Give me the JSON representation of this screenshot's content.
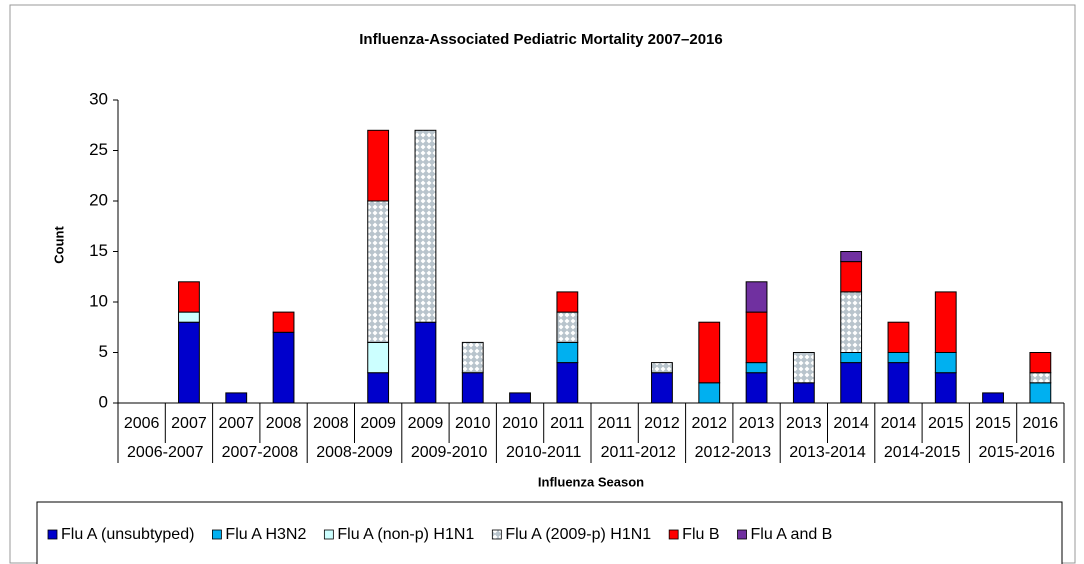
{
  "chart_data": {
    "type": "stacked-bar",
    "title": "Influenza-Associated Pediatric Mortality 2007–2016",
    "x_label": "Influenza Season",
    "y_label": "Count",
    "categories": [
      "2006",
      "2007",
      "2007",
      "2008",
      "2008",
      "2009",
      "2009",
      "2010",
      "2010",
      "2011",
      "2011",
      "2012",
      "2012",
      "2013",
      "2013",
      "2014",
      "2014",
      "2015",
      "2015",
      "2016"
    ],
    "groups": [
      "2006-2007",
      "2007-2008",
      "2008-2009",
      "2009-2010",
      "2010-2011",
      "2011-2012",
      "2012-2013",
      "2013-2014",
      "2014-2015",
      "2015-2016"
    ],
    "series": [
      {
        "name": "Flu A (unsubtyped)",
        "color": "#0000cc",
        "values": [
          0,
          8,
          1,
          7,
          0,
          3,
          8,
          3,
          1,
          4,
          0,
          3,
          0,
          3,
          2,
          4,
          4,
          3,
          1,
          0
        ]
      },
      {
        "name": "Flu A H3N2",
        "color": "#00b0f0",
        "values": [
          0,
          0,
          0,
          0,
          0,
          0,
          0,
          0,
          0,
          2,
          0,
          0,
          2,
          1,
          0,
          1,
          1,
          2,
          0,
          2
        ]
      },
      {
        "name": "Flu A (non-p) H1N1",
        "color": "#ccffff",
        "values": [
          0,
          1,
          0,
          0,
          0,
          3,
          0,
          0,
          0,
          0,
          0,
          0,
          0,
          0,
          0,
          0,
          0,
          0,
          0,
          0
        ]
      },
      {
        "name": "Flu A (2009-p) H1N1",
        "color": "#b8c4cc",
        "pattern": "diamond",
        "values": [
          0,
          0,
          0,
          0,
          0,
          14,
          19,
          3,
          0,
          3,
          0,
          1,
          0,
          0,
          3,
          6,
          0,
          0,
          0,
          1
        ]
      },
      {
        "name": "Flu B",
        "color": "#ff0000",
        "values": [
          0,
          3,
          0,
          2,
          0,
          7,
          0,
          0,
          0,
          2,
          0,
          0,
          6,
          5,
          0,
          3,
          3,
          6,
          0,
          2
        ]
      },
      {
        "name": "Flu A and B",
        "color": "#7030a0",
        "values": [
          0,
          0,
          0,
          0,
          0,
          0,
          0,
          0,
          0,
          0,
          0,
          0,
          0,
          3,
          0,
          1,
          0,
          0,
          0,
          0
        ]
      }
    ],
    "ylim": [
      0,
      30
    ],
    "yticks": [
      0,
      5,
      10,
      15,
      20,
      25,
      30
    ],
    "grid": false
  }
}
